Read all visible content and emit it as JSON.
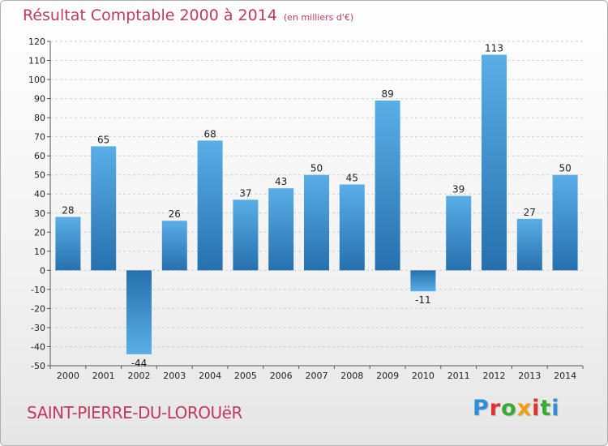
{
  "header": {
    "title": "Résultat Comptable 2000 à 2014",
    "subtitle": "(en milliers d'€)"
  },
  "commune": "SAINT-PIERRE-DU-LOROUëR",
  "logo": {
    "letters": [
      "P",
      "r",
      "o",
      "x",
      "i",
      "t",
      "i"
    ],
    "colors": [
      "#2e8fd8",
      "#e0322d",
      "#3aaa35",
      "#f39c12",
      "#e0322d",
      "#3aaa35",
      "#2e8fd8"
    ]
  },
  "colors": {
    "bar_top": "#5aaee6",
    "bar_bottom": "#2670ae",
    "grid": "#d0d0d0",
    "axis": "#555555",
    "title": "#c0395e"
  },
  "chart_data": {
    "type": "bar",
    "categories": [
      "2000",
      "2001",
      "2002",
      "2003",
      "2004",
      "2005",
      "2006",
      "2007",
      "2008",
      "2009",
      "2010",
      "2011",
      "2012",
      "2013",
      "2014"
    ],
    "values": [
      28,
      65,
      -44,
      26,
      68,
      37,
      43,
      50,
      45,
      89,
      -11,
      39,
      113,
      27,
      50
    ],
    "data_labels": [
      "28",
      "65",
      "-44",
      "26",
      "68",
      "37",
      "43",
      "50",
      "45",
      "89",
      "-11",
      "39",
      "113",
      "27",
      "50"
    ],
    "title": "Résultat Comptable 2000 à 2014",
    "xlabel": "",
    "ylabel": "",
    "ylim": [
      -50,
      120
    ],
    "yticks": [
      -50,
      -40,
      -30,
      -20,
      -10,
      0,
      10,
      20,
      30,
      40,
      50,
      60,
      70,
      80,
      90,
      100,
      110,
      120
    ],
    "grid": true
  }
}
